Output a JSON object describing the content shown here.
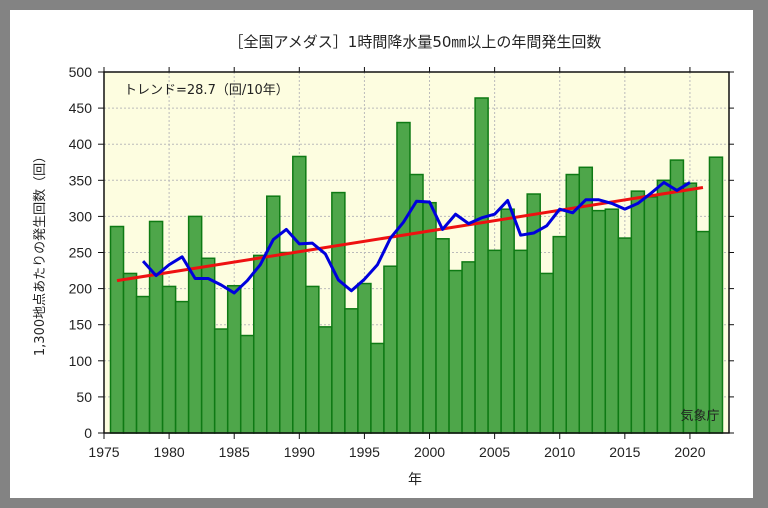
{
  "chart_data": {
    "type": "bar",
    "title": "［全国アメダス］1時間降水量50㎜以上の年間発生回数",
    "xlabel": "年",
    "ylabel": "1,300地点あたりの発生回数（回）",
    "annotation": "トレンド=28.7（回/10年）",
    "credit": "気象庁",
    "xlim": [
      1975,
      2023
    ],
    "ylim": [
      0,
      500
    ],
    "x_ticks": [
      "1975",
      "1980",
      "1985",
      "1990",
      "1995",
      "2000",
      "2005",
      "2010",
      "2015",
      "2020"
    ],
    "y_ticks": [
      "0",
      "50",
      "100",
      "150",
      "200",
      "250",
      "300",
      "350",
      "400",
      "450",
      "500"
    ],
    "grid": true,
    "years": [
      1976,
      1977,
      1978,
      1979,
      1980,
      1981,
      1982,
      1983,
      1984,
      1985,
      1986,
      1987,
      1988,
      1989,
      1990,
      1991,
      1992,
      1993,
      1994,
      1995,
      1996,
      1997,
      1998,
      1999,
      2000,
      2001,
      2002,
      2003,
      2004,
      2005,
      2006,
      2007,
      2008,
      2009,
      2010,
      2011,
      2012,
      2013,
      2014,
      2015,
      2016,
      2017,
      2018,
      2019,
      2020,
      2021,
      2022
    ],
    "values": [
      286,
      221,
      189,
      293,
      203,
      182,
      300,
      242,
      144,
      204,
      135,
      246,
      328,
      250,
      383,
      203,
      147,
      333,
      172,
      207,
      124,
      231,
      430,
      358,
      319,
      269,
      225,
      237,
      464,
      253,
      310,
      253,
      331,
      221,
      272,
      358,
      368,
      308,
      310,
      270,
      335,
      327,
      350,
      378,
      346,
      279,
      382
    ],
    "moving_average_5yr": {
      "years": [
        1978,
        1979,
        1980,
        1981,
        1982,
        1983,
        1984,
        1985,
        1986,
        1987,
        1988,
        1989,
        1990,
        1991,
        1992,
        1993,
        1994,
        1995,
        1996,
        1997,
        1998,
        1999,
        2000,
        2001,
        2002,
        2003,
        2004,
        2005,
        2006,
        2007,
        2008,
        2009,
        2010,
        2011,
        2012,
        2013,
        2014,
        2015,
        2016,
        2017,
        2018,
        2019,
        2020
      ],
      "values": [
        238,
        218,
        233,
        244,
        214,
        214,
        205,
        194,
        211,
        233,
        268,
        282,
        262,
        263,
        248,
        212,
        197,
        213,
        233,
        270,
        292,
        321,
        320,
        282,
        303,
        290,
        298,
        303,
        322,
        274,
        277,
        287,
        310,
        305,
        323,
        323,
        318,
        310,
        318,
        332,
        347,
        336,
        347
      ]
    },
    "trend_line": {
      "years": [
        1976,
        2021
      ],
      "values": [
        211,
        340
      ],
      "slope_per_decade": 28.7
    },
    "colors": {
      "bar": "#4ea64a",
      "bar_edge": "#0e7a14",
      "plot_bg": "#fdfde0",
      "moving_average": "#0000dd",
      "trend": "#ee1111",
      "frame": "#838383"
    }
  }
}
